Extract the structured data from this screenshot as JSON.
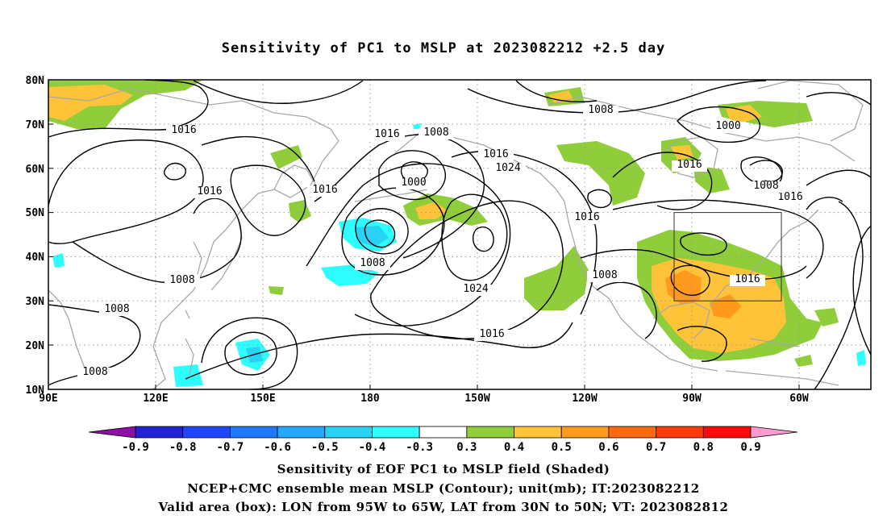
{
  "title": "Sensitivity of PC1 to MSLP at 2023082212 +2.5 day",
  "map": {
    "lat_ticks": [
      "80N",
      "70N",
      "60N",
      "50N",
      "40N",
      "30N",
      "20N",
      "10N"
    ],
    "lon_ticks": [
      "90E",
      "120E",
      "150E",
      "180",
      "150W",
      "120W",
      "90W",
      "60W"
    ],
    "contour_labels": [
      "1016",
      "1016",
      "1016",
      "1016",
      "1008",
      "1008",
      "1016",
      "1008",
      "1000",
      "1016",
      "1024",
      "1008",
      "1016",
      "1024",
      "1008",
      "1016",
      "1008",
      "1000",
      "1016",
      "1008",
      "1016",
      "1016",
      "1008",
      "1008"
    ],
    "colors": {
      "positive_green": "#8fce3a",
      "positive_orange": "#f6a623",
      "negative_cyan": "#27dfef",
      "coast": "#a8a8a8"
    }
  },
  "colorbar": {
    "labels": [
      "-0.9",
      "-0.8",
      "-0.7",
      "-0.6",
      "-0.5",
      "-0.4",
      "-0.3",
      "0.3",
      "0.4",
      "0.5",
      "0.6",
      "0.7",
      "0.8",
      "0.9"
    ],
    "colors": [
      "#8e0fa8",
      "#2222d4",
      "#1e46ff",
      "#1f78ff",
      "#27a8ff",
      "#27d2f5",
      "#2dfdfd",
      "#ffffff",
      "#8fce3a",
      "#ffc33a",
      "#ff9a1e",
      "#ff6a10",
      "#ff3a0a",
      "#ff0a0a",
      "#ff9bd1"
    ]
  },
  "captions": {
    "line1": "Sensitivity of EOF PC1 to MSLP field (Shaded)",
    "line2": "NCEP+CMC ensemble mean MSLP (Contour); unit(mb); IT:2023082212",
    "line3": "Valid area (box): LON from 95W to 65W, LAT from 30N to 50N; VT: 2023082812"
  }
}
